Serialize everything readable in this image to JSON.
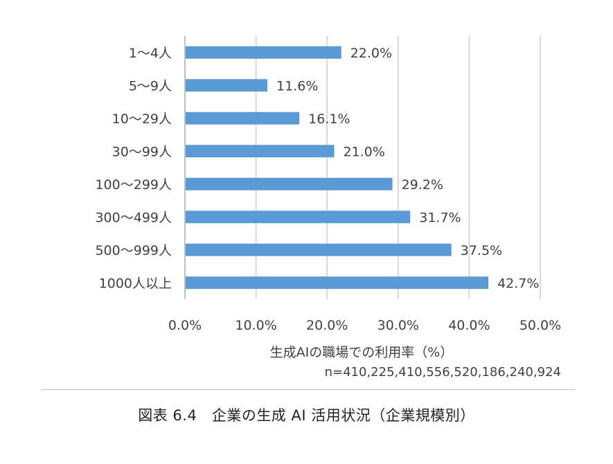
{
  "chart_data": {
    "type": "bar",
    "orientation": "horizontal",
    "categories": [
      "1〜4人",
      "5〜9人",
      "10〜29人",
      "30〜99人",
      "100〜299人",
      "300〜499人",
      "500〜999人",
      "1000人以上"
    ],
    "values": [
      22.0,
      11.6,
      16.1,
      21.0,
      29.2,
      31.7,
      37.5,
      42.7
    ],
    "data_labels": [
      "22.0%",
      "11.6%",
      "16.1%",
      "21.0%",
      "29.2%",
      "31.7%",
      "37.5%",
      "42.7%"
    ],
    "xlim": [
      0,
      50
    ],
    "xticks": [
      "0.0%",
      "10.0%",
      "20.0%",
      "30.0%",
      "40.0%",
      "50.0%"
    ],
    "xlabel": "生成AIの職場での利用率（%）",
    "note": "n=410,225,410,556,520,186,240,924",
    "bar_color": "#5b9bd5",
    "grid": true
  },
  "caption": "図表 6.4　企業の生成 AI 活用状況（企業規模別）"
}
